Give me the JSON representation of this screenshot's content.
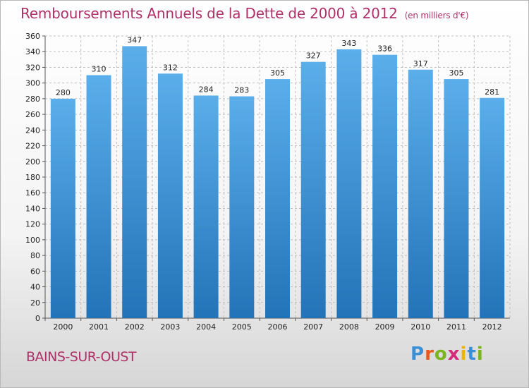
{
  "title": "Remboursements Annuels de la Dette de 2000 à 2012",
  "subtitle": "(en milliers d'€)",
  "commune": "BAINS-SUR-OUST",
  "logo": {
    "letters": [
      "P",
      "r",
      "o",
      "x",
      "i",
      "t",
      "i"
    ],
    "colors": [
      "#3a8fd6",
      "#e85a1c",
      "#7ab51d",
      "#d42a7a",
      "#f0b400",
      "#3a8fd6",
      "#7ab51d"
    ]
  },
  "colors": {
    "bar_top": "#5aaeea",
    "bar_bottom": "#2373b8",
    "title": "#b0306a",
    "grid": "#bfbfbf"
  },
  "chart_data": {
    "type": "bar",
    "categories": [
      "2000",
      "2001",
      "2002",
      "2003",
      "2004",
      "2005",
      "2006",
      "2007",
      "2008",
      "2009",
      "2010",
      "2011",
      "2012"
    ],
    "values": [
      280,
      310,
      347,
      312,
      284,
      283,
      305,
      327,
      343,
      336,
      317,
      305,
      281
    ],
    "ylim": [
      0,
      360
    ],
    "yticks": [
      0,
      20,
      40,
      60,
      80,
      100,
      120,
      140,
      160,
      180,
      200,
      220,
      240,
      260,
      280,
      300,
      320,
      340,
      360
    ],
    "grid": true,
    "title": "Remboursements Annuels de la Dette de 2000 à 2012",
    "xlabel": "",
    "ylabel": ""
  }
}
